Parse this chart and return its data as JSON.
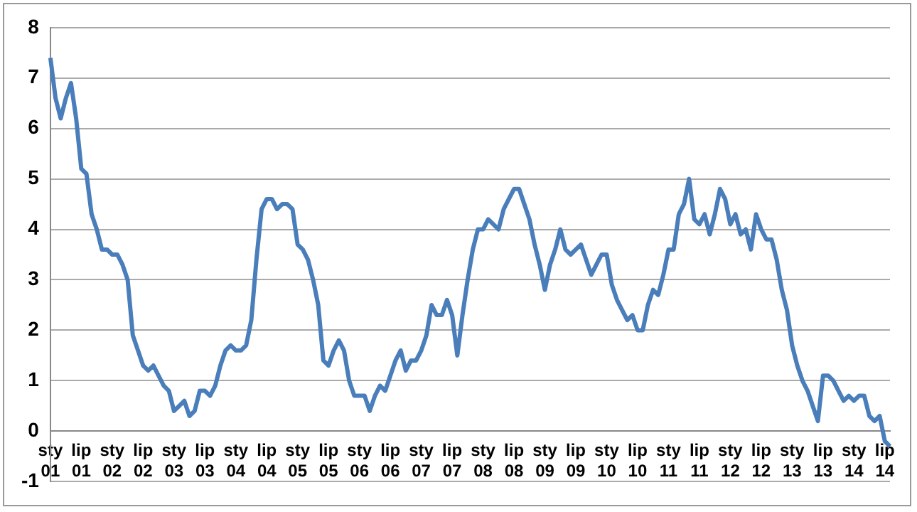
{
  "chart_data": {
    "type": "line",
    "categories": [
      "sty 01",
      null,
      null,
      null,
      null,
      null,
      "lip 01",
      null,
      null,
      null,
      null,
      null,
      "sty 02",
      null,
      null,
      null,
      null,
      null,
      "lip 02",
      null,
      null,
      null,
      null,
      null,
      "sty 03",
      null,
      null,
      null,
      null,
      null,
      "lip 03",
      null,
      null,
      null,
      null,
      null,
      "sty 04",
      null,
      null,
      null,
      null,
      null,
      "lip 04",
      null,
      null,
      null,
      null,
      null,
      "sty 05",
      null,
      null,
      null,
      null,
      null,
      "lip 05",
      null,
      null,
      null,
      null,
      null,
      "sty 06",
      null,
      null,
      null,
      null,
      null,
      "lip 06",
      null,
      null,
      null,
      null,
      null,
      "sty 07",
      null,
      null,
      null,
      null,
      null,
      "lip 07",
      null,
      null,
      null,
      null,
      null,
      "sty 08",
      null,
      null,
      null,
      null,
      null,
      "lip 08",
      null,
      null,
      null,
      null,
      null,
      "sty 09",
      null,
      null,
      null,
      null,
      null,
      "lip 09",
      null,
      null,
      null,
      null,
      null,
      "sty 10",
      null,
      null,
      null,
      null,
      null,
      "lip 10",
      null,
      null,
      null,
      null,
      null,
      "sty 11",
      null,
      null,
      null,
      null,
      null,
      "lip 11",
      null,
      null,
      null,
      null,
      null,
      "sty 12",
      null,
      null,
      null,
      null,
      null,
      "lip 12",
      null,
      null,
      null,
      null,
      null,
      "sty 13",
      null,
      null,
      null,
      null,
      null,
      "lip 13",
      null,
      null,
      null,
      null,
      null,
      "sty 14",
      null,
      null,
      null,
      null,
      null,
      "lip 14",
      null
    ],
    "series": [
      {
        "color": "#4a7ebb",
        "values": [
          7.4,
          6.6,
          6.2,
          6.6,
          6.9,
          6.2,
          5.2,
          5.1,
          4.3,
          4.0,
          3.6,
          3.6,
          3.5,
          3.5,
          3.3,
          3.0,
          1.9,
          1.6,
          1.3,
          1.2,
          1.3,
          1.1,
          0.9,
          0.8,
          0.4,
          0.5,
          0.6,
          0.3,
          0.4,
          0.8,
          0.8,
          0.7,
          0.9,
          1.3,
          1.6,
          1.7,
          1.6,
          1.6,
          1.7,
          2.2,
          3.4,
          4.4,
          4.6,
          4.6,
          4.4,
          4.5,
          4.5,
          4.4,
          3.7,
          3.6,
          3.4,
          3.0,
          2.5,
          1.4,
          1.3,
          1.6,
          1.8,
          1.6,
          1.0,
          0.7,
          0.7,
          0.7,
          0.4,
          0.7,
          0.9,
          0.8,
          1.1,
          1.4,
          1.6,
          1.2,
          1.4,
          1.4,
          1.6,
          1.9,
          2.5,
          2.3,
          2.3,
          2.6,
          2.3,
          1.5,
          2.3,
          3.0,
          3.6,
          4.0,
          4.0,
          4.2,
          4.1,
          4.0,
          4.4,
          4.6,
          4.8,
          4.8,
          4.5,
          4.2,
          3.7,
          3.3,
          2.8,
          3.3,
          3.6,
          4.0,
          3.6,
          3.5,
          3.6,
          3.7,
          3.4,
          3.1,
          3.3,
          3.5,
          3.5,
          2.9,
          2.6,
          2.4,
          2.2,
          2.3,
          2.0,
          2.0,
          2.5,
          2.8,
          2.7,
          3.1,
          3.6,
          3.6,
          4.3,
          4.5,
          5.0,
          4.2,
          4.1,
          4.3,
          3.9,
          4.3,
          4.8,
          4.6,
          4.1,
          4.3,
          3.9,
          4.0,
          3.6,
          4.3,
          4.0,
          3.8,
          3.8,
          3.4,
          2.8,
          2.4,
          1.7,
          1.3,
          1.0,
          0.8,
          0.5,
          0.2,
          1.1,
          1.1,
          1.0,
          0.8,
          0.6,
          0.7,
          0.6,
          0.7,
          0.7,
          0.3,
          0.2,
          0.3,
          -0.2,
          -0.3
        ]
      }
    ],
    "ylim": [
      -1,
      8
    ],
    "yticks": [
      -1,
      0,
      1,
      2,
      3,
      4,
      5,
      6,
      7,
      8
    ],
    "grid": "y",
    "marker": "none",
    "line_style": "solid"
  }
}
